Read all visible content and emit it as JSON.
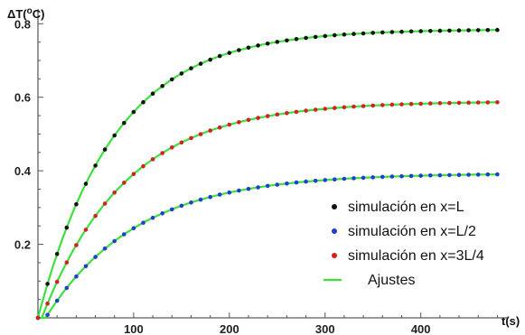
{
  "chart_data": {
    "type": "scatter",
    "xlabel": "t(s)",
    "ylabel": "ΔT(°C)",
    "ylabel_parts": {
      "delta": "Δ",
      "t": "T(",
      "sup": "o",
      "unit": "C)"
    },
    "xlim": [
      0,
      490
    ],
    "ylim": [
      0,
      0.84
    ],
    "xticks": [
      100,
      200,
      300,
      400
    ],
    "yticks": [
      0.2,
      0.4,
      0.6,
      0.8
    ],
    "xtick_labels": [
      "100",
      "200",
      "300",
      "400"
    ],
    "ytick_labels": [
      "0.2",
      "0.4",
      "0.6",
      "0.8"
    ],
    "grid": false,
    "legend_position": "center-right",
    "t_step": 10,
    "t_max": 480,
    "series": [
      {
        "name": "simulación en x=L",
        "color": "#111111",
        "kind": "points",
        "amplitude": 0.785,
        "tau": 80,
        "delay": 0
      },
      {
        "name": "simulación en x=L/2",
        "color": "#1f3fd0",
        "kind": "points",
        "amplitude": 0.393,
        "tau": 95,
        "delay": 8
      },
      {
        "name": "simulación en x=3L/4",
        "color": "#d42020",
        "kind": "points",
        "amplitude": 0.589,
        "tau": 88,
        "delay": 4
      }
    ],
    "fits": {
      "name": "Ajustes",
      "color": "#3ee03e",
      "kind": "line"
    },
    "legend_order": [
      0,
      1,
      2,
      "fits"
    ]
  }
}
